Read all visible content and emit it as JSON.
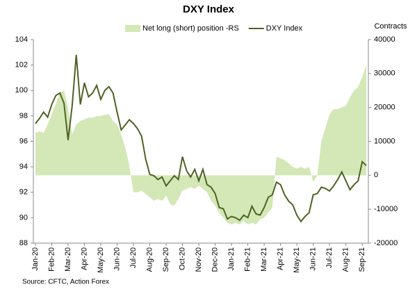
{
  "chart_data": {
    "type": "line",
    "title": "DXY Index",
    "y2_label": "Contracts",
    "source": "Source: CFTC, Action Forex",
    "legend": "top",
    "categories": [
      "Jan-20",
      null,
      null,
      null,
      "Feb-20",
      null,
      null,
      null,
      "Mar-20",
      null,
      null,
      null,
      "Apr-20",
      null,
      null,
      null,
      "May-20",
      null,
      null,
      null,
      "Jun-20",
      null,
      null,
      null,
      "Jul-20",
      null,
      null,
      null,
      "Aug-20",
      null,
      null,
      null,
      "Sep-20",
      null,
      null,
      null,
      "Oct-20",
      null,
      null,
      null,
      "Nov-20",
      null,
      null,
      null,
      "Dec-20",
      null,
      null,
      null,
      "Jan-21",
      null,
      null,
      null,
      "Feb-21",
      null,
      null,
      null,
      "Mar-21",
      null,
      null,
      null,
      "Apr-21",
      null,
      null,
      null,
      "May-21",
      null,
      null,
      null,
      "Jun-21",
      null,
      null,
      null,
      "Jul-21",
      null,
      null,
      null,
      "Aug-21",
      null,
      null,
      null,
      "Sep-21",
      null
    ],
    "series": [
      {
        "name": "Net long (short) position -RS",
        "type": "area",
        "axis": "y2",
        "color": "#d3e8b6",
        "values": [
          12500,
          13000,
          12500,
          15000,
          18000,
          21000,
          24500,
          25000,
          20000,
          12000,
          15000,
          16000,
          16500,
          17000,
          17000,
          17500,
          17500,
          17800,
          18000,
          16000,
          15000,
          12000,
          8000,
          3000,
          -5000,
          -5000,
          -4500,
          -5500,
          -6500,
          -7500,
          -7000,
          -7500,
          -6000,
          -8500,
          -9000,
          -7000,
          -4500,
          -4000,
          -3500,
          -4000,
          -3000,
          -4000,
          -5000,
          -7500,
          -9000,
          -11000,
          -12500,
          -14000,
          -14500,
          -14000,
          -14500,
          -13500,
          -14500,
          -14000,
          -14500,
          -13000,
          -12500,
          -11000,
          -9500,
          5500,
          5000,
          4500,
          3500,
          2500,
          2000,
          2500,
          2000,
          2500,
          -2000,
          0,
          10000,
          14000,
          18000,
          19500,
          19500,
          20000,
          20500,
          23000,
          25000,
          26000,
          29000,
          32500
        ]
      },
      {
        "name": "DXY Index",
        "type": "line",
        "axis": "y",
        "color": "#4f6124",
        "values": [
          97.4,
          97.8,
          98.3,
          97.9,
          98.9,
          99.6,
          99.8,
          99.0,
          96.1,
          98.8,
          102.8,
          98.9,
          100.6,
          99.5,
          99.8,
          100.4,
          99.3,
          100.0,
          100.3,
          99.8,
          98.3,
          96.9,
          97.3,
          97.7,
          97.4,
          97.0,
          96.4,
          94.6,
          93.4,
          93.3,
          93.0,
          93.2,
          92.5,
          92.9,
          93.3,
          93.0,
          94.8,
          93.7,
          93.2,
          93.8,
          92.9,
          93.8,
          92.6,
          92.4,
          91.9,
          90.8,
          90.7,
          89.9,
          90.1,
          90.0,
          89.8,
          90.2,
          90.0,
          90.9,
          90.3,
          90.2,
          90.8,
          91.6,
          91.8,
          92.8,
          92.6,
          91.8,
          91.3,
          91.0,
          90.2,
          89.7,
          90.1,
          90.4,
          91.8,
          91.9,
          92.4,
          92.3,
          92.1,
          92.5,
          93.0,
          93.6,
          92.9,
          92.2,
          92.6,
          92.9,
          94.4,
          94.1
        ]
      }
    ],
    "ylim": [
      88,
      104
    ],
    "yticks": [
      88,
      90,
      92,
      94,
      96,
      98,
      100,
      102,
      104
    ],
    "y2lim": [
      -20000,
      40000
    ],
    "y2ticks": [
      -20000,
      -10000,
      0,
      10000,
      20000,
      30000,
      40000
    ]
  }
}
